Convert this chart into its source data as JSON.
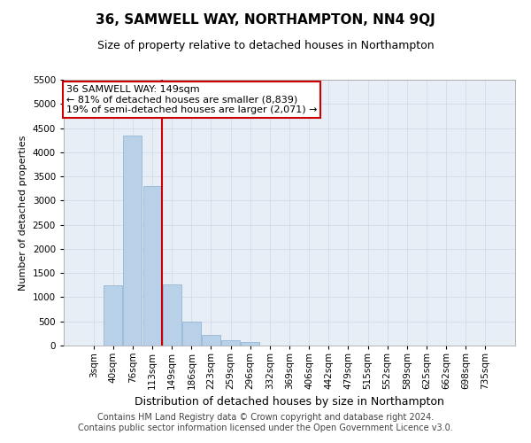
{
  "title": "36, SAMWELL WAY, NORTHAMPTON, NN4 9QJ",
  "subtitle": "Size of property relative to detached houses in Northampton",
  "xlabel": "Distribution of detached houses by size in Northampton",
  "ylabel": "Number of detached properties",
  "footer_line1": "Contains HM Land Registry data © Crown copyright and database right 2024.",
  "footer_line2": "Contains public sector information licensed under the Open Government Licence v3.0.",
  "annotation_title": "36 SAMWELL WAY: 149sqm",
  "annotation_line1": "← 81% of detached houses are smaller (8,839)",
  "annotation_line2": "19% of semi-detached houses are larger (2,071) →",
  "categories": [
    "3sqm",
    "40sqm",
    "76sqm",
    "113sqm",
    "149sqm",
    "186sqm",
    "223sqm",
    "259sqm",
    "296sqm",
    "332sqm",
    "369sqm",
    "406sqm",
    "442sqm",
    "479sqm",
    "515sqm",
    "552sqm",
    "589sqm",
    "625sqm",
    "662sqm",
    "698sqm",
    "735sqm"
  ],
  "values": [
    0,
    1250,
    4350,
    3300,
    1270,
    500,
    220,
    110,
    80,
    0,
    0,
    0,
    0,
    0,
    0,
    0,
    0,
    0,
    0,
    0,
    0
  ],
  "bar_color": "#b8d0e8",
  "bar_edge_color": "#8ab0d0",
  "vline_color": "#cc0000",
  "vline_x": 3.5,
  "ylim_max": 5500,
  "yticks": [
    0,
    500,
    1000,
    1500,
    2000,
    2500,
    3000,
    3500,
    4000,
    4500,
    5000,
    5500
  ],
  "grid_color": "#d0d8e8",
  "background_color": "#e8eef5",
  "annotation_box_color": "#ffffff",
  "annotation_box_edge": "#cc0000",
  "title_fontsize": 11,
  "subtitle_fontsize": 9,
  "ylabel_fontsize": 8,
  "xlabel_fontsize": 9,
  "tick_fontsize": 7.5,
  "annotation_fontsize": 8,
  "footer_fontsize": 7
}
